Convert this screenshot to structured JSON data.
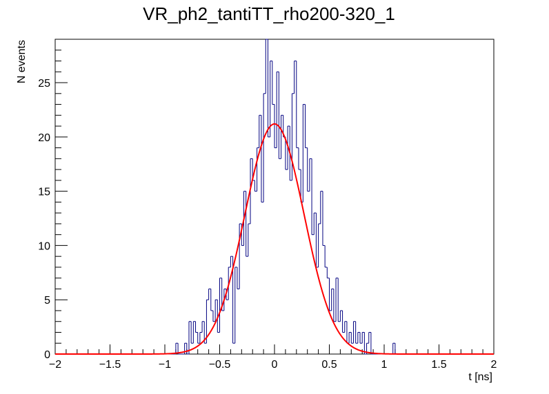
{
  "chart_data": {
    "type": "histogram",
    "title": "VR_ph2_tantiTT_rho200-320_1",
    "xlabel": "t [ns]",
    "ylabel": "N events",
    "xlim": [
      -2,
      2
    ],
    "ylim": [
      0,
      29
    ],
    "x_ticks": [
      -2,
      -1.5,
      -1,
      -0.5,
      0,
      0.5,
      1,
      1.5,
      2
    ],
    "x_tick_labels": [
      "−2",
      "−1.5",
      "−1",
      "−0.5",
      "0",
      "0.5",
      "1",
      "1.5",
      "2"
    ],
    "y_ticks": [
      0,
      5,
      10,
      15,
      20,
      25
    ],
    "y_tick_labels": [
      "0",
      "5",
      "10",
      "15",
      "20",
      "25"
    ],
    "bin_width": 0.02,
    "series": [
      {
        "name": "data",
        "color": "#000080",
        "bins": [
          {
            "x": -1.02,
            "y": 0
          },
          {
            "x": -1.0,
            "y": 0
          },
          {
            "x": -0.98,
            "y": 0
          },
          {
            "x": -0.96,
            "y": 0
          },
          {
            "x": -0.94,
            "y": 0
          },
          {
            "x": -0.92,
            "y": 0
          },
          {
            "x": -0.9,
            "y": 1
          },
          {
            "x": -0.88,
            "y": 0
          },
          {
            "x": -0.86,
            "y": 0
          },
          {
            "x": -0.84,
            "y": 0
          },
          {
            "x": -0.82,
            "y": 1
          },
          {
            "x": -0.8,
            "y": 0
          },
          {
            "x": -0.78,
            "y": 3
          },
          {
            "x": -0.76,
            "y": 1
          },
          {
            "x": -0.74,
            "y": 3
          },
          {
            "x": -0.72,
            "y": 2
          },
          {
            "x": -0.7,
            "y": 1
          },
          {
            "x": -0.68,
            "y": 2
          },
          {
            "x": -0.66,
            "y": 3
          },
          {
            "x": -0.64,
            "y": 1
          },
          {
            "x": -0.62,
            "y": 5
          },
          {
            "x": -0.6,
            "y": 6
          },
          {
            "x": -0.58,
            "y": 4
          },
          {
            "x": -0.56,
            "y": 3
          },
          {
            "x": -0.54,
            "y": 5
          },
          {
            "x": -0.52,
            "y": 2
          },
          {
            "x": -0.5,
            "y": 7
          },
          {
            "x": -0.48,
            "y": 4
          },
          {
            "x": -0.46,
            "y": 6
          },
          {
            "x": -0.44,
            "y": 5
          },
          {
            "x": -0.42,
            "y": 8
          },
          {
            "x": -0.4,
            "y": 9
          },
          {
            "x": -0.38,
            "y": 1
          },
          {
            "x": -0.36,
            "y": 8
          },
          {
            "x": -0.34,
            "y": 6
          },
          {
            "x": -0.32,
            "y": 12
          },
          {
            "x": -0.3,
            "y": 10
          },
          {
            "x": -0.28,
            "y": 15
          },
          {
            "x": -0.26,
            "y": 9
          },
          {
            "x": -0.24,
            "y": 12
          },
          {
            "x": -0.22,
            "y": 18
          },
          {
            "x": -0.2,
            "y": 16
          },
          {
            "x": -0.18,
            "y": 15
          },
          {
            "x": -0.16,
            "y": 19
          },
          {
            "x": -0.14,
            "y": 22
          },
          {
            "x": -0.12,
            "y": 14
          },
          {
            "x": -0.1,
            "y": 24
          },
          {
            "x": -0.08,
            "y": 29
          },
          {
            "x": -0.06,
            "y": 20
          },
          {
            "x": -0.04,
            "y": 27
          },
          {
            "x": -0.02,
            "y": 23
          },
          {
            "x": 0.0,
            "y": 19
          },
          {
            "x": 0.02,
            "y": 26
          },
          {
            "x": 0.04,
            "y": 18
          },
          {
            "x": 0.06,
            "y": 22
          },
          {
            "x": 0.08,
            "y": 20
          },
          {
            "x": 0.1,
            "y": 17
          },
          {
            "x": 0.12,
            "y": 21
          },
          {
            "x": 0.14,
            "y": 16
          },
          {
            "x": 0.16,
            "y": 24
          },
          {
            "x": 0.18,
            "y": 27
          },
          {
            "x": 0.2,
            "y": 19
          },
          {
            "x": 0.22,
            "y": 17
          },
          {
            "x": 0.24,
            "y": 14
          },
          {
            "x": 0.26,
            "y": 23
          },
          {
            "x": 0.28,
            "y": 19
          },
          {
            "x": 0.3,
            "y": 15
          },
          {
            "x": 0.32,
            "y": 18
          },
          {
            "x": 0.34,
            "y": 11
          },
          {
            "x": 0.36,
            "y": 13
          },
          {
            "x": 0.38,
            "y": 8
          },
          {
            "x": 0.4,
            "y": 12
          },
          {
            "x": 0.42,
            "y": 15
          },
          {
            "x": 0.44,
            "y": 10
          },
          {
            "x": 0.46,
            "y": 8
          },
          {
            "x": 0.48,
            "y": 7
          },
          {
            "x": 0.5,
            "y": 4
          },
          {
            "x": 0.52,
            "y": 6
          },
          {
            "x": 0.54,
            "y": 3
          },
          {
            "x": 0.56,
            "y": 7
          },
          {
            "x": 0.58,
            "y": 3
          },
          {
            "x": 0.6,
            "y": 4
          },
          {
            "x": 0.62,
            "y": 2
          },
          {
            "x": 0.64,
            "y": 3
          },
          {
            "x": 0.66,
            "y": 1
          },
          {
            "x": 0.68,
            "y": 2
          },
          {
            "x": 0.7,
            "y": 1
          },
          {
            "x": 0.72,
            "y": 3
          },
          {
            "x": 0.74,
            "y": 1
          },
          {
            "x": 0.76,
            "y": 2
          },
          {
            "x": 0.78,
            "y": 1
          },
          {
            "x": 0.8,
            "y": 2
          },
          {
            "x": 0.82,
            "y": 0
          },
          {
            "x": 0.84,
            "y": 1
          },
          {
            "x": 0.86,
            "y": 2
          },
          {
            "x": 0.88,
            "y": 0
          },
          {
            "x": 0.9,
            "y": 0
          },
          {
            "x": 0.92,
            "y": 0
          },
          {
            "x": 0.94,
            "y": 0
          },
          {
            "x": 0.96,
            "y": 0
          },
          {
            "x": 0.98,
            "y": 0
          },
          {
            "x": 1.0,
            "y": 0
          },
          {
            "x": 1.02,
            "y": 0
          },
          {
            "x": 1.04,
            "y": 0
          },
          {
            "x": 1.06,
            "y": 0
          },
          {
            "x": 1.08,
            "y": 1
          },
          {
            "x": 1.1,
            "y": 0
          }
        ]
      },
      {
        "name": "gaussian fit",
        "color": "#ff0000",
        "function": "gaussian",
        "amplitude": 21.2,
        "mean": 0.0,
        "sigma": 0.27
      }
    ],
    "grid": false,
    "legend": "none"
  }
}
